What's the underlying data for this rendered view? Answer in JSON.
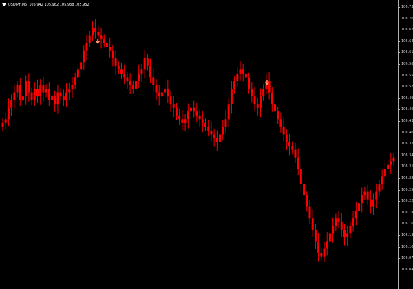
{
  "header": {
    "symbol": "USDJPY,M5",
    "ohlc": "105.942 105.962 105.938 105.952"
  },
  "price_axis": {
    "labels": [
      "106.735",
      "106.705",
      "106.675",
      "106.645",
      "106.615",
      "106.585",
      "106.555",
      "106.525",
      "106.495",
      "106.465",
      "106.435",
      "106.405",
      "106.375",
      "106.345",
      "106.315",
      "106.285",
      "106.255",
      "106.225",
      "106.195",
      "106.165",
      "106.135",
      "106.105",
      "106.075",
      "106.045"
    ]
  },
  "colors": {
    "background": "#000000",
    "candle": "#ff0000",
    "arrow": "#ffa477",
    "axis_text": "#d8d8d8"
  },
  "chart_data": {
    "type": "candlestick",
    "ylim": [
      106.045,
      106.735
    ],
    "candles_close": [
      106.43,
      106.44,
      106.47,
      106.49,
      106.51,
      106.53,
      106.49,
      106.5,
      106.54,
      106.51,
      106.49,
      106.52,
      106.5,
      106.53,
      106.51,
      106.52,
      106.49,
      106.5,
      106.48,
      106.51,
      106.5,
      106.49,
      106.51,
      106.52,
      106.53,
      106.55,
      106.57,
      106.59,
      106.62,
      106.64,
      106.66,
      106.68,
      106.67,
      106.66,
      106.65,
      106.64,
      106.63,
      106.62,
      106.6,
      106.58,
      106.57,
      106.56,
      106.55,
      106.54,
      106.53,
      106.52,
      106.54,
      106.56,
      106.57,
      106.6,
      106.58,
      106.55,
      106.53,
      106.51,
      106.5,
      106.51,
      106.52,
      106.5,
      106.48,
      106.47,
      106.45,
      106.44,
      106.43,
      106.44,
      106.46,
      106.47,
      106.46,
      106.45,
      106.44,
      106.43,
      106.42,
      106.41,
      106.4,
      106.39,
      106.38,
      106.4,
      106.42,
      106.44,
      106.48,
      106.52,
      106.54,
      106.56,
      106.57,
      106.56,
      106.55,
      106.52,
      106.5,
      106.48,
      106.47,
      106.5,
      106.52,
      106.54,
      106.51,
      106.48,
      106.46,
      106.44,
      106.42,
      106.4,
      106.38,
      106.37,
      106.36,
      106.34,
      106.31,
      106.27,
      106.24,
      106.21,
      106.18,
      106.15,
      106.12,
      106.09,
      106.08,
      106.1,
      106.12,
      106.14,
      106.16,
      106.18,
      106.17,
      106.15,
      106.13,
      106.14,
      106.16,
      106.18,
      106.2,
      106.22,
      106.24,
      106.25,
      106.23,
      106.21,
      106.23,
      106.25,
      106.27,
      106.29,
      106.31,
      106.32,
      106.33,
      106.34
    ]
  }
}
